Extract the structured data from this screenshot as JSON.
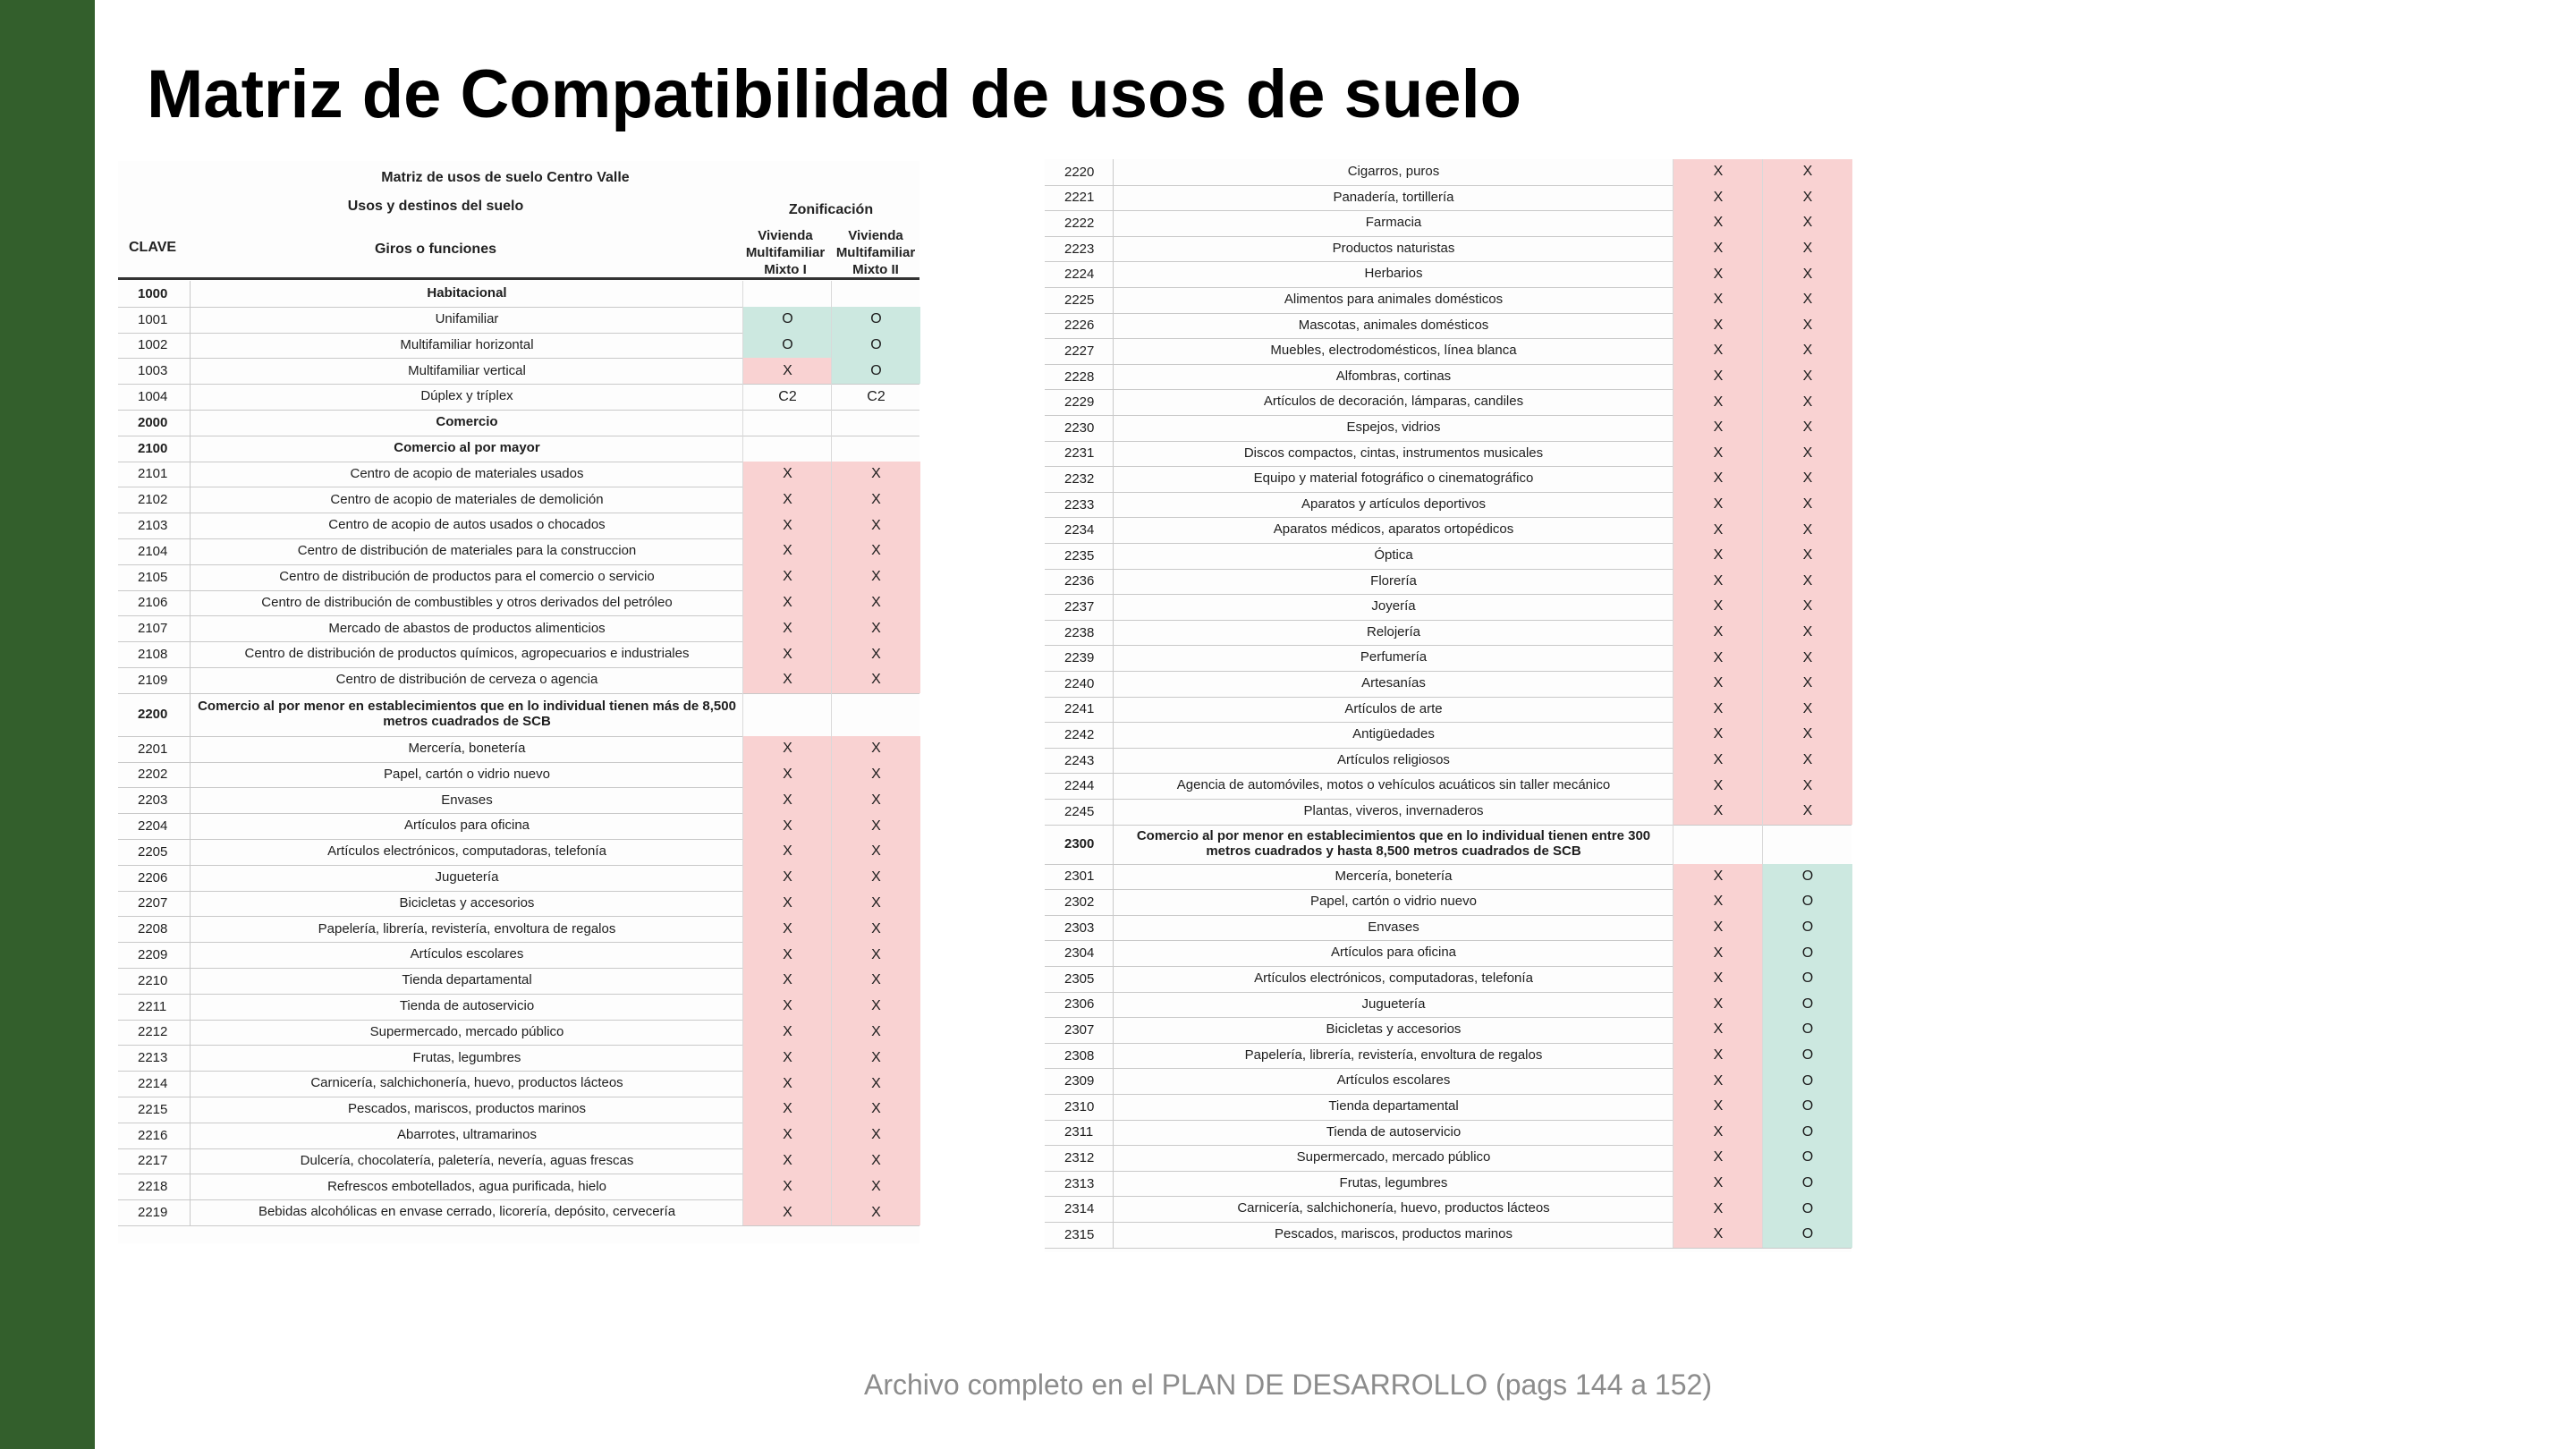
{
  "title": "Matriz de Compatibilidad de usos de suelo",
  "footer": "Archivo completo en el PLAN DE DESARROLLO (pags 144 a 152)",
  "colors": {
    "sidebar": "#335f2c",
    "not_compatible": "#f9d2d2",
    "compatible": "#cce8e0"
  },
  "left_table": {
    "heading": "Matriz de usos de suelo Centro Valle",
    "usos": "Usos y destinos del suelo",
    "zonificacion": "Zonificación",
    "clave": "CLAVE",
    "giros": "Giros o funciones",
    "col1": "Vivienda Multifamiliar Mixto I",
    "col2": "Vivienda Multifamiliar Mixto II",
    "rows": [
      {
        "code": "1000",
        "name": "Habitacional",
        "v1": "",
        "v2": "",
        "section": true
      },
      {
        "code": "1001",
        "name": "Unifamiliar",
        "v1": "O",
        "v2": "O",
        "c1": "green",
        "c2": "green"
      },
      {
        "code": "1002",
        "name": "Multifamiliar horizontal",
        "v1": "O",
        "v2": "O",
        "c1": "green",
        "c2": "green"
      },
      {
        "code": "1003",
        "name": "Multifamiliar vertical",
        "v1": "X",
        "v2": "O",
        "c1": "red",
        "c2": "green"
      },
      {
        "code": "1004",
        "name": "Dúplex y tríplex",
        "v1": "C2",
        "v2": "C2"
      },
      {
        "code": "2000",
        "name": "Comercio",
        "v1": "",
        "v2": "",
        "section": true
      },
      {
        "code": "2100",
        "name": "Comercio al por mayor",
        "v1": "",
        "v2": "",
        "section": true
      },
      {
        "code": "2101",
        "name": "Centro de acopio de materiales usados",
        "v1": "X",
        "v2": "X",
        "c1": "red",
        "c2": "red"
      },
      {
        "code": "2102",
        "name": "Centro de acopio de materiales de demolición",
        "v1": "X",
        "v2": "X",
        "c1": "red",
        "c2": "red"
      },
      {
        "code": "2103",
        "name": "Centro de acopio de autos usados o chocados",
        "v1": "X",
        "v2": "X",
        "c1": "red",
        "c2": "red"
      },
      {
        "code": "2104",
        "name": "Centro de distribución de materiales para la construccion",
        "v1": "X",
        "v2": "X",
        "c1": "red",
        "c2": "red"
      },
      {
        "code": "2105",
        "name": "Centro de distribución de productos para el comercio o servicio",
        "v1": "X",
        "v2": "X",
        "c1": "red",
        "c2": "red"
      },
      {
        "code": "2106",
        "name": "Centro de distribución de combustibles y otros derivados del petróleo",
        "v1": "X",
        "v2": "X",
        "c1": "red",
        "c2": "red"
      },
      {
        "code": "2107",
        "name": "Mercado de abastos de productos alimenticios",
        "v1": "X",
        "v2": "X",
        "c1": "red",
        "c2": "red"
      },
      {
        "code": "2108",
        "name": "Centro de distribución de productos químicos, agropecuarios e industriales",
        "v1": "X",
        "v2": "X",
        "c1": "red",
        "c2": "red"
      },
      {
        "code": "2109",
        "name": "Centro de distribución de cerveza o agencia",
        "v1": "X",
        "v2": "X",
        "c1": "red",
        "c2": "red"
      },
      {
        "code": "2200",
        "name": "Comercio al por menor en establecimientos que en lo individual tienen más de 8,500 metros cuadrados de SCB",
        "v1": "",
        "v2": "",
        "section": true,
        "tall": true
      },
      {
        "code": "2201",
        "name": "Mercería, bonetería",
        "v1": "X",
        "v2": "X",
        "c1": "red",
        "c2": "red"
      },
      {
        "code": "2202",
        "name": "Papel, cartón o vidrio nuevo",
        "v1": "X",
        "v2": "X",
        "c1": "red",
        "c2": "red"
      },
      {
        "code": "2203",
        "name": "Envases",
        "v1": "X",
        "v2": "X",
        "c1": "red",
        "c2": "red"
      },
      {
        "code": "2204",
        "name": "Artículos para oficina",
        "v1": "X",
        "v2": "X",
        "c1": "red",
        "c2": "red"
      },
      {
        "code": "2205",
        "name": "Artículos electrónicos, computadoras, telefonía",
        "v1": "X",
        "v2": "X",
        "c1": "red",
        "c2": "red"
      },
      {
        "code": "2206",
        "name": "Juguetería",
        "v1": "X",
        "v2": "X",
        "c1": "red",
        "c2": "red"
      },
      {
        "code": "2207",
        "name": "Bicicletas y accesorios",
        "v1": "X",
        "v2": "X",
        "c1": "red",
        "c2": "red"
      },
      {
        "code": "2208",
        "name": "Papelería, librería, revistería, envoltura de regalos",
        "v1": "X",
        "v2": "X",
        "c1": "red",
        "c2": "red"
      },
      {
        "code": "2209",
        "name": "Artículos escolares",
        "v1": "X",
        "v2": "X",
        "c1": "red",
        "c2": "red"
      },
      {
        "code": "2210",
        "name": "Tienda departamental",
        "v1": "X",
        "v2": "X",
        "c1": "red",
        "c2": "red"
      },
      {
        "code": "2211",
        "name": "Tienda de autoservicio",
        "v1": "X",
        "v2": "X",
        "c1": "red",
        "c2": "red"
      },
      {
        "code": "2212",
        "name": "Supermercado, mercado público",
        "v1": "X",
        "v2": "X",
        "c1": "red",
        "c2": "red"
      },
      {
        "code": "2213",
        "name": "Frutas, legumbres",
        "v1": "X",
        "v2": "X",
        "c1": "red",
        "c2": "red"
      },
      {
        "code": "2214",
        "name": "Carnicería, salchichonería, huevo, productos lácteos",
        "v1": "X",
        "v2": "X",
        "c1": "red",
        "c2": "red"
      },
      {
        "code": "2215",
        "name": "Pescados, mariscos, productos marinos",
        "v1": "X",
        "v2": "X",
        "c1": "red",
        "c2": "red"
      },
      {
        "code": "2216",
        "name": "Abarrotes, ultramarinos",
        "v1": "X",
        "v2": "X",
        "c1": "red",
        "c2": "red"
      },
      {
        "code": "2217",
        "name": "Dulcería, chocolatería, paletería, nevería, aguas frescas",
        "v1": "X",
        "v2": "X",
        "c1": "red",
        "c2": "red"
      },
      {
        "code": "2218",
        "name": "Refrescos embotellados, agua purificada, hielo",
        "v1": "X",
        "v2": "X",
        "c1": "red",
        "c2": "red"
      },
      {
        "code": "2219",
        "name": "Bebidas alcohólicas en envase cerrado, licorería, depósito, cervecería",
        "v1": "X",
        "v2": "X",
        "c1": "red",
        "c2": "red"
      }
    ]
  },
  "right_table": {
    "rows": [
      {
        "code": "2220",
        "name": "Cigarros, puros",
        "v1": "X",
        "v2": "X",
        "c1": "red",
        "c2": "red"
      },
      {
        "code": "2221",
        "name": "Panadería, tortillería",
        "v1": "X",
        "v2": "X",
        "c1": "red",
        "c2": "red"
      },
      {
        "code": "2222",
        "name": "Farmacia",
        "v1": "X",
        "v2": "X",
        "c1": "red",
        "c2": "red"
      },
      {
        "code": "2223",
        "name": "Productos naturistas",
        "v1": "X",
        "v2": "X",
        "c1": "red",
        "c2": "red"
      },
      {
        "code": "2224",
        "name": "Herbarios",
        "v1": "X",
        "v2": "X",
        "c1": "red",
        "c2": "red"
      },
      {
        "code": "2225",
        "name": "Alimentos para animales domésticos",
        "v1": "X",
        "v2": "X",
        "c1": "red",
        "c2": "red"
      },
      {
        "code": "2226",
        "name": "Mascotas, animales domésticos",
        "v1": "X",
        "v2": "X",
        "c1": "red",
        "c2": "red"
      },
      {
        "code": "2227",
        "name": "Muebles, electrodomésticos, línea blanca",
        "v1": "X",
        "v2": "X",
        "c1": "red",
        "c2": "red"
      },
      {
        "code": "2228",
        "name": "Alfombras, cortinas",
        "v1": "X",
        "v2": "X",
        "c1": "red",
        "c2": "red"
      },
      {
        "code": "2229",
        "name": "Artículos de decoración, lámparas, candiles",
        "v1": "X",
        "v2": "X",
        "c1": "red",
        "c2": "red"
      },
      {
        "code": "2230",
        "name": "Espejos, vidrios",
        "v1": "X",
        "v2": "X",
        "c1": "red",
        "c2": "red"
      },
      {
        "code": "2231",
        "name": "Discos compactos, cintas, instrumentos musicales",
        "v1": "X",
        "v2": "X",
        "c1": "red",
        "c2": "red"
      },
      {
        "code": "2232",
        "name": "Equipo y material fotográfico o cinematográfico",
        "v1": "X",
        "v2": "X",
        "c1": "red",
        "c2": "red"
      },
      {
        "code": "2233",
        "name": "Aparatos y artículos deportivos",
        "v1": "X",
        "v2": "X",
        "c1": "red",
        "c2": "red"
      },
      {
        "code": "2234",
        "name": "Aparatos médicos, aparatos ortopédicos",
        "v1": "X",
        "v2": "X",
        "c1": "red",
        "c2": "red"
      },
      {
        "code": "2235",
        "name": "Óptica",
        "v1": "X",
        "v2": "X",
        "c1": "red",
        "c2": "red"
      },
      {
        "code": "2236",
        "name": "Florería",
        "v1": "X",
        "v2": "X",
        "c1": "red",
        "c2": "red"
      },
      {
        "code": "2237",
        "name": "Joyería",
        "v1": "X",
        "v2": "X",
        "c1": "red",
        "c2": "red"
      },
      {
        "code": "2238",
        "name": "Relojería",
        "v1": "X",
        "v2": "X",
        "c1": "red",
        "c2": "red"
      },
      {
        "code": "2239",
        "name": "Perfumería",
        "v1": "X",
        "v2": "X",
        "c1": "red",
        "c2": "red"
      },
      {
        "code": "2240",
        "name": "Artesanías",
        "v1": "X",
        "v2": "X",
        "c1": "red",
        "c2": "red"
      },
      {
        "code": "2241",
        "name": "Artículos de arte",
        "v1": "X",
        "v2": "X",
        "c1": "red",
        "c2": "red"
      },
      {
        "code": "2242",
        "name": "Antigüedades",
        "v1": "X",
        "v2": "X",
        "c1": "red",
        "c2": "red"
      },
      {
        "code": "2243",
        "name": "Artículos religiosos",
        "v1": "X",
        "v2": "X",
        "c1": "red",
        "c2": "red"
      },
      {
        "code": "2244",
        "name": "Agencia de automóviles, motos o vehículos acuáticos sin taller mecánico",
        "v1": "X",
        "v2": "X",
        "c1": "red",
        "c2": "red"
      },
      {
        "code": "2245",
        "name": "Plantas, viveros, invernaderos",
        "v1": "X",
        "v2": "X",
        "c1": "red",
        "c2": "red"
      },
      {
        "code": "2300",
        "name": "Comercio al por menor en establecimientos que en lo individual tienen entre 300 metros cuadrados y hasta 8,500 metros cuadrados de SCB",
        "v1": "",
        "v2": "",
        "section": true,
        "tall": true
      },
      {
        "code": "2301",
        "name": "Mercería, bonetería",
        "v1": "X",
        "v2": "O",
        "c1": "red",
        "c2": "green"
      },
      {
        "code": "2302",
        "name": "Papel, cartón o vidrio nuevo",
        "v1": "X",
        "v2": "O",
        "c1": "red",
        "c2": "green"
      },
      {
        "code": "2303",
        "name": "Envases",
        "v1": "X",
        "v2": "O",
        "c1": "red",
        "c2": "green"
      },
      {
        "code": "2304",
        "name": "Artículos para oficina",
        "v1": "X",
        "v2": "O",
        "c1": "red",
        "c2": "green"
      },
      {
        "code": "2305",
        "name": "Artículos electrónicos, computadoras, telefonía",
        "v1": "X",
        "v2": "O",
        "c1": "red",
        "c2": "green"
      },
      {
        "code": "2306",
        "name": "Juguetería",
        "v1": "X",
        "v2": "O",
        "c1": "red",
        "c2": "green"
      },
      {
        "code": "2307",
        "name": "Bicicletas y accesorios",
        "v1": "X",
        "v2": "O",
        "c1": "red",
        "c2": "green"
      },
      {
        "code": "2308",
        "name": "Papelería, librería, revistería, envoltura de regalos",
        "v1": "X",
        "v2": "O",
        "c1": "red",
        "c2": "green"
      },
      {
        "code": "2309",
        "name": "Artículos escolares",
        "v1": "X",
        "v2": "O",
        "c1": "red",
        "c2": "green"
      },
      {
        "code": "2310",
        "name": "Tienda departamental",
        "v1": "X",
        "v2": "O",
        "c1": "red",
        "c2": "green"
      },
      {
        "code": "2311",
        "name": "Tienda de autoservicio",
        "v1": "X",
        "v2": "O",
        "c1": "red",
        "c2": "green"
      },
      {
        "code": "2312",
        "name": "Supermercado, mercado público",
        "v1": "X",
        "v2": "O",
        "c1": "red",
        "c2": "green"
      },
      {
        "code": "2313",
        "name": "Frutas, legumbres",
        "v1": "X",
        "v2": "O",
        "c1": "red",
        "c2": "green"
      },
      {
        "code": "2314",
        "name": "Carnicería, salchichonería, huevo, productos lácteos",
        "v1": "X",
        "v2": "O",
        "c1": "red",
        "c2": "green"
      },
      {
        "code": "2315",
        "name": "Pescados, mariscos, productos marinos",
        "v1": "X",
        "v2": "O",
        "c1": "red",
        "c2": "green"
      }
    ]
  }
}
